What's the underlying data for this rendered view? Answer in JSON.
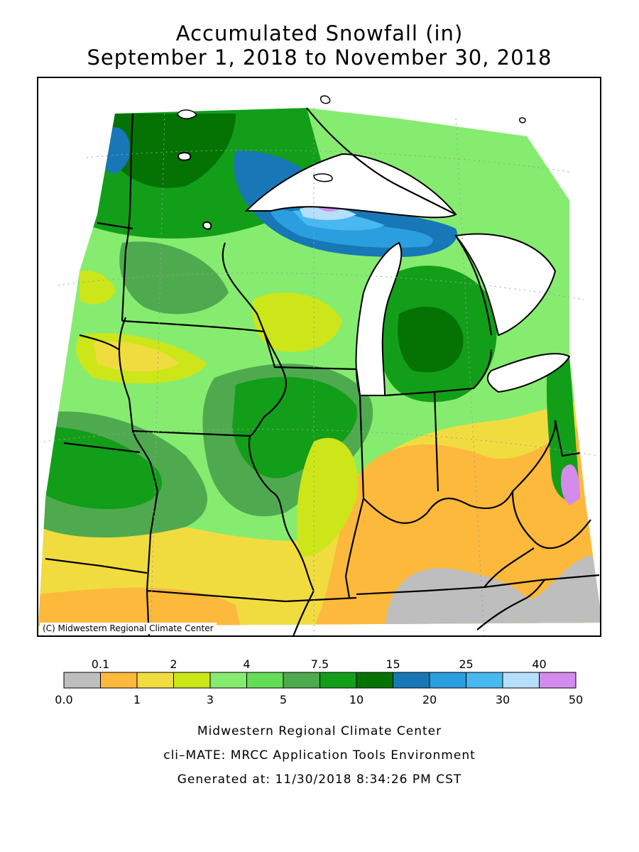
{
  "title": {
    "line1": "Accumulated Snowfall (in)",
    "line2": "September 1, 2018 to November 30, 2018"
  },
  "copyright": "(C) Midwestern Regional Climate Center",
  "legend": {
    "top_labels": [
      "0.1",
      "2",
      "4",
      "7.5",
      "15",
      "25",
      "40"
    ],
    "bottom_labels": [
      "0.0",
      "1",
      "3",
      "5",
      "10",
      "20",
      "30",
      "50"
    ],
    "colors": [
      "#bebebe",
      "#fdb93c",
      "#f1dc3f",
      "#cce61a",
      "#86ec6f",
      "#63dc57",
      "#4faa4f",
      "#129e19",
      "#047304",
      "#1877b7",
      "#2b9ee0",
      "#48b8f0",
      "#b5dffa",
      "#d38ced"
    ]
  },
  "footer": {
    "org": "Midwestern Regional Climate Center",
    "tool": "cli–MATE: MRCC Application Tools Environment",
    "generated": "Generated at: 11/30/2018 8:34:26 PM CST"
  }
}
